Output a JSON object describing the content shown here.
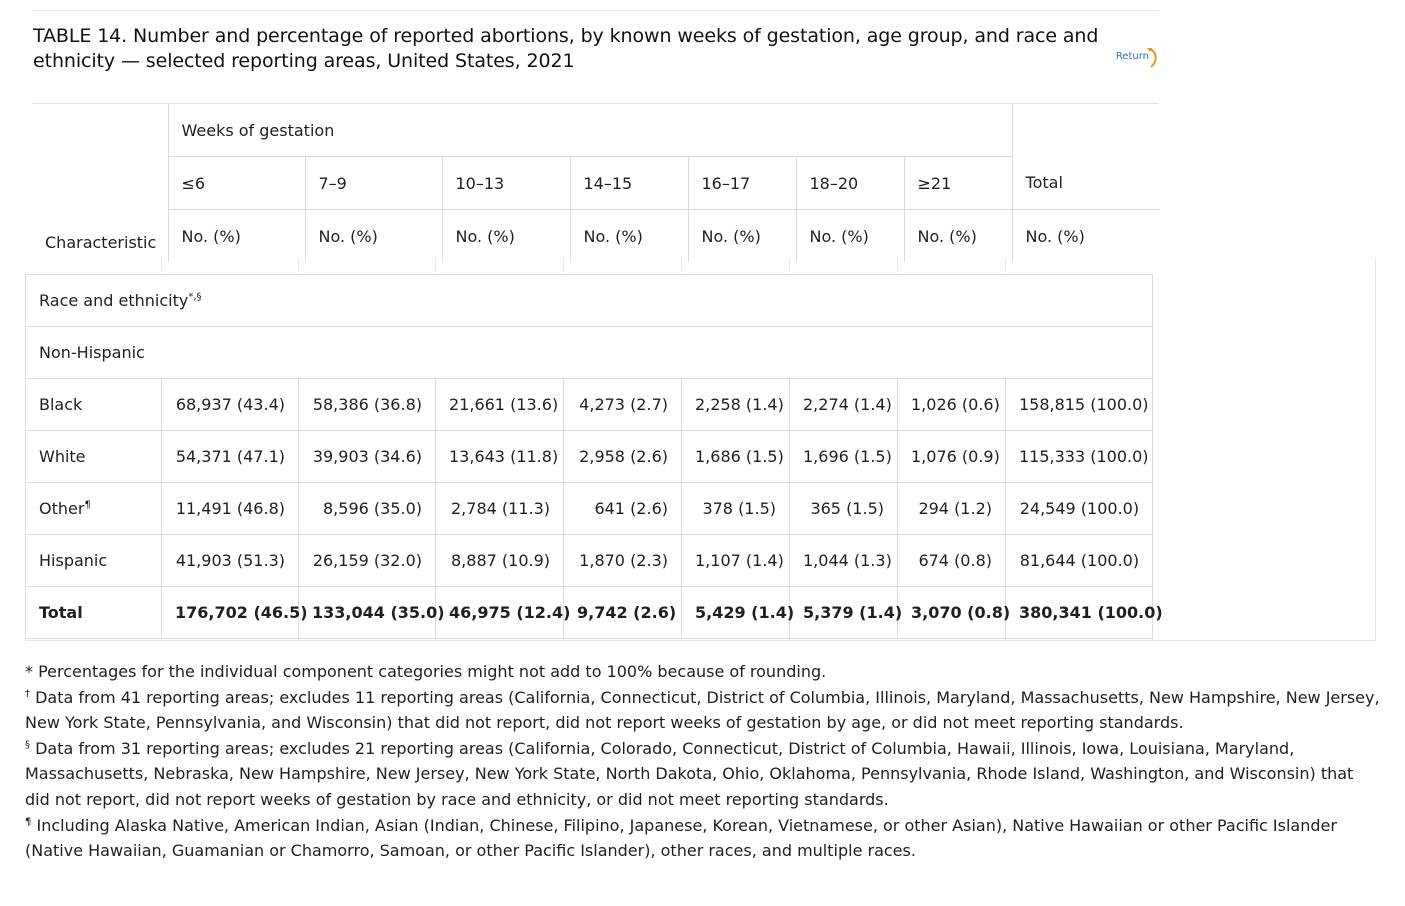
{
  "title": "TABLE 14. Number and percentage of reported abortions, by known weeks of gestation, age group, and race and ethnicity — selected reporting areas, United States, 2021",
  "return_label": "Return",
  "header": {
    "characteristic_label": "Characteristic",
    "weeks_label": "Weeks of gestation",
    "columns": [
      "≤6",
      "7–9",
      "10–13",
      "14–15",
      "16–17",
      "18–20",
      "≥21",
      "Total"
    ],
    "unit_label": "No. (%)"
  },
  "sections": {
    "race_label": "Race and ethnicity",
    "race_marks": "*,§",
    "non_hispanic_label": "Non-Hispanic"
  },
  "rows": [
    {
      "label": "Black",
      "mark": "",
      "values": [
        "68,937 (43.4)",
        "58,386 (36.8)",
        "21,661 (13.6)",
        "4,273 (2.7)",
        "2,258 (1.4)",
        "2,274 (1.4)",
        "1,026 (0.6)",
        "158,815 (100.0)"
      ]
    },
    {
      "label": "White",
      "mark": "",
      "values": [
        "54,371 (47.1)",
        "39,903 (34.6)",
        "13,643 (11.8)",
        "2,958 (2.6)",
        "1,686 (1.5)",
        "1,696 (1.5)",
        "1,076 (0.9)",
        "115,333 (100.0)"
      ]
    },
    {
      "label": "Other",
      "mark": "¶",
      "values": [
        "11,491 (46.8)",
        "8,596 (35.0)",
        "2,784 (11.3)",
        "641 (2.6)",
        "378 (1.5)",
        "365 (1.5)",
        "294 (1.2)",
        "24,549 (100.0)"
      ]
    },
    {
      "label": "Hispanic",
      "mark": "",
      "values": [
        "41,903 (51.3)",
        "26,159 (32.0)",
        "8,887 (10.9)",
        "1,870 (2.3)",
        "1,107 (1.4)",
        "1,044 (1.3)",
        "674 (0.8)",
        "81,644 (100.0)"
      ]
    },
    {
      "label": "Total",
      "mark": "",
      "values": [
        "176,702 (46.5)",
        "133,044 (35.0)",
        "46,975 (12.4)",
        "9,742 (2.6)",
        "5,429 (1.4)",
        "5,379 (1.4)",
        "3,070 (0.8)",
        "380,341 (100.0)"
      ]
    }
  ],
  "footnotes": [
    {
      "mark": "*",
      "text": "Percentages for the individual component categories might not add to 100% because of rounding."
    },
    {
      "mark": "†",
      "text": "Data from 41 reporting areas; excludes 11 reporting areas (California, Connecticut, District of Columbia, Illinois, Maryland, Massachusetts, New Hampshire, New Jersey, New York State, Pennsylvania, and Wisconsin) that did not report, did not report weeks of gestation by age, or did not meet reporting standards."
    },
    {
      "mark": "§",
      "text": "Data from 31 reporting areas; excludes 21 reporting areas (California, Colorado, Connecticut, District of Columbia, Hawaii, Illinois, Iowa, Louisiana, Maryland, Massachusetts, Nebraska, New Hampshire, New Jersey, New York State, North Dakota, Ohio, Oklahoma, Pennsylvania, Rhode Island, Washington, and Wisconsin) that did not report, did not report weeks of gestation by race and ethnicity, or did not meet reporting standards."
    },
    {
      "mark": "¶",
      "text": "Including Alaska Native, American Indian, Asian (Indian, Chinese, Filipino, Japanese, Korean, Vietnamese, or other Asian), Native Hawaiian or other Pacific Islander (Native Hawaiian, Guamanian or Chamorro, Samoan, or other Pacific Islander), other races, and multiple races."
    }
  ],
  "colors": {
    "link": "#2a6fb5",
    "return_arrow": "#e8912d",
    "border": "#dcdcdc"
  }
}
